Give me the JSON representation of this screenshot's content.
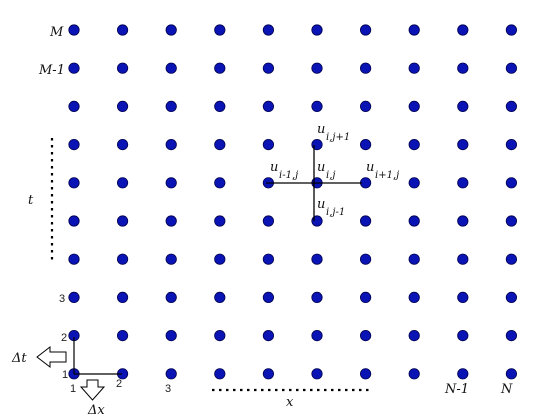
{
  "diagram": {
    "grid": {
      "columns": 10,
      "rows": 10,
      "node_color": "#0a14b4",
      "node_outline": "#000050"
    },
    "row_labels": {
      "top": "M",
      "second": "M-1",
      "r3": "3",
      "r2": "2",
      "r1": "1"
    },
    "col_labels": {
      "c1": "1",
      "c2": "2",
      "c3": "3",
      "second_last": "N-1",
      "last": "N"
    },
    "axis_labels": {
      "time": "t",
      "space": "x"
    },
    "steps": {
      "dt": "Δt",
      "dx": "Δx"
    },
    "stencil": {
      "center": {
        "base": "u",
        "sub": "i,j"
      },
      "up": {
        "base": "u",
        "sub": "i,j+1"
      },
      "down": {
        "base": "u",
        "sub": "i,j-1"
      },
      "left": {
        "base": "u",
        "sub": "i-1,j"
      },
      "right": {
        "base": "u",
        "sub": "i+1,j"
      }
    }
  }
}
